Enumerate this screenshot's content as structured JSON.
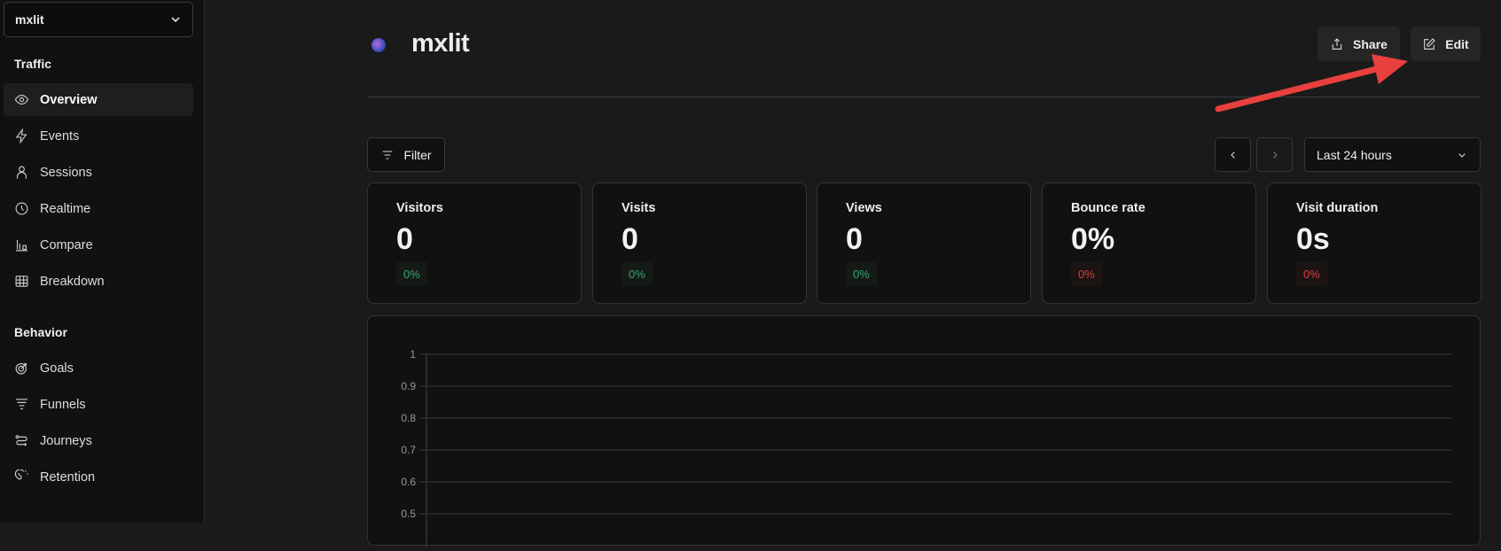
{
  "sidebar": {
    "site": "mxlit",
    "sections": [
      {
        "title": "Traffic",
        "items": [
          {
            "label": "Overview",
            "icon": "eye-icon",
            "active": true
          },
          {
            "label": "Events",
            "icon": "lightning-icon"
          },
          {
            "label": "Sessions",
            "icon": "user-icon"
          },
          {
            "label": "Realtime",
            "icon": "clock-icon"
          },
          {
            "label": "Compare",
            "icon": "compare-icon"
          },
          {
            "label": "Breakdown",
            "icon": "table-icon"
          }
        ]
      },
      {
        "title": "Behavior",
        "items": [
          {
            "label": "Goals",
            "icon": "target-icon"
          },
          {
            "label": "Funnels",
            "icon": "funnel-icon"
          },
          {
            "label": "Journeys",
            "icon": "route-icon"
          },
          {
            "label": "Retention",
            "icon": "magnet-icon"
          }
        ]
      }
    ]
  },
  "header": {
    "title": "mxlit",
    "share": "Share",
    "edit": "Edit"
  },
  "toolbar": {
    "filter": "Filter",
    "range": "Last 24 hours"
  },
  "metrics": [
    {
      "label": "Visitors",
      "value": "0",
      "change": "0%",
      "trend": "up"
    },
    {
      "label": "Visits",
      "value": "0",
      "change": "0%",
      "trend": "up"
    },
    {
      "label": "Views",
      "value": "0",
      "change": "0%",
      "trend": "up"
    },
    {
      "label": "Bounce rate",
      "value": "0%",
      "change": "0%",
      "trend": "down"
    },
    {
      "label": "Visit duration",
      "value": "0s",
      "change": "0%",
      "trend": "down"
    }
  ],
  "chart_data": {
    "type": "bar",
    "yticks": [
      "1",
      "0.9",
      "0.8",
      "0.7",
      "0.6",
      "0.5"
    ],
    "ylim": [
      0,
      1
    ],
    "grid": true,
    "series": []
  },
  "colors": {
    "positive": "#3aa56a",
    "negative": "#d6443f",
    "annotation_arrow": "#e8403f"
  }
}
